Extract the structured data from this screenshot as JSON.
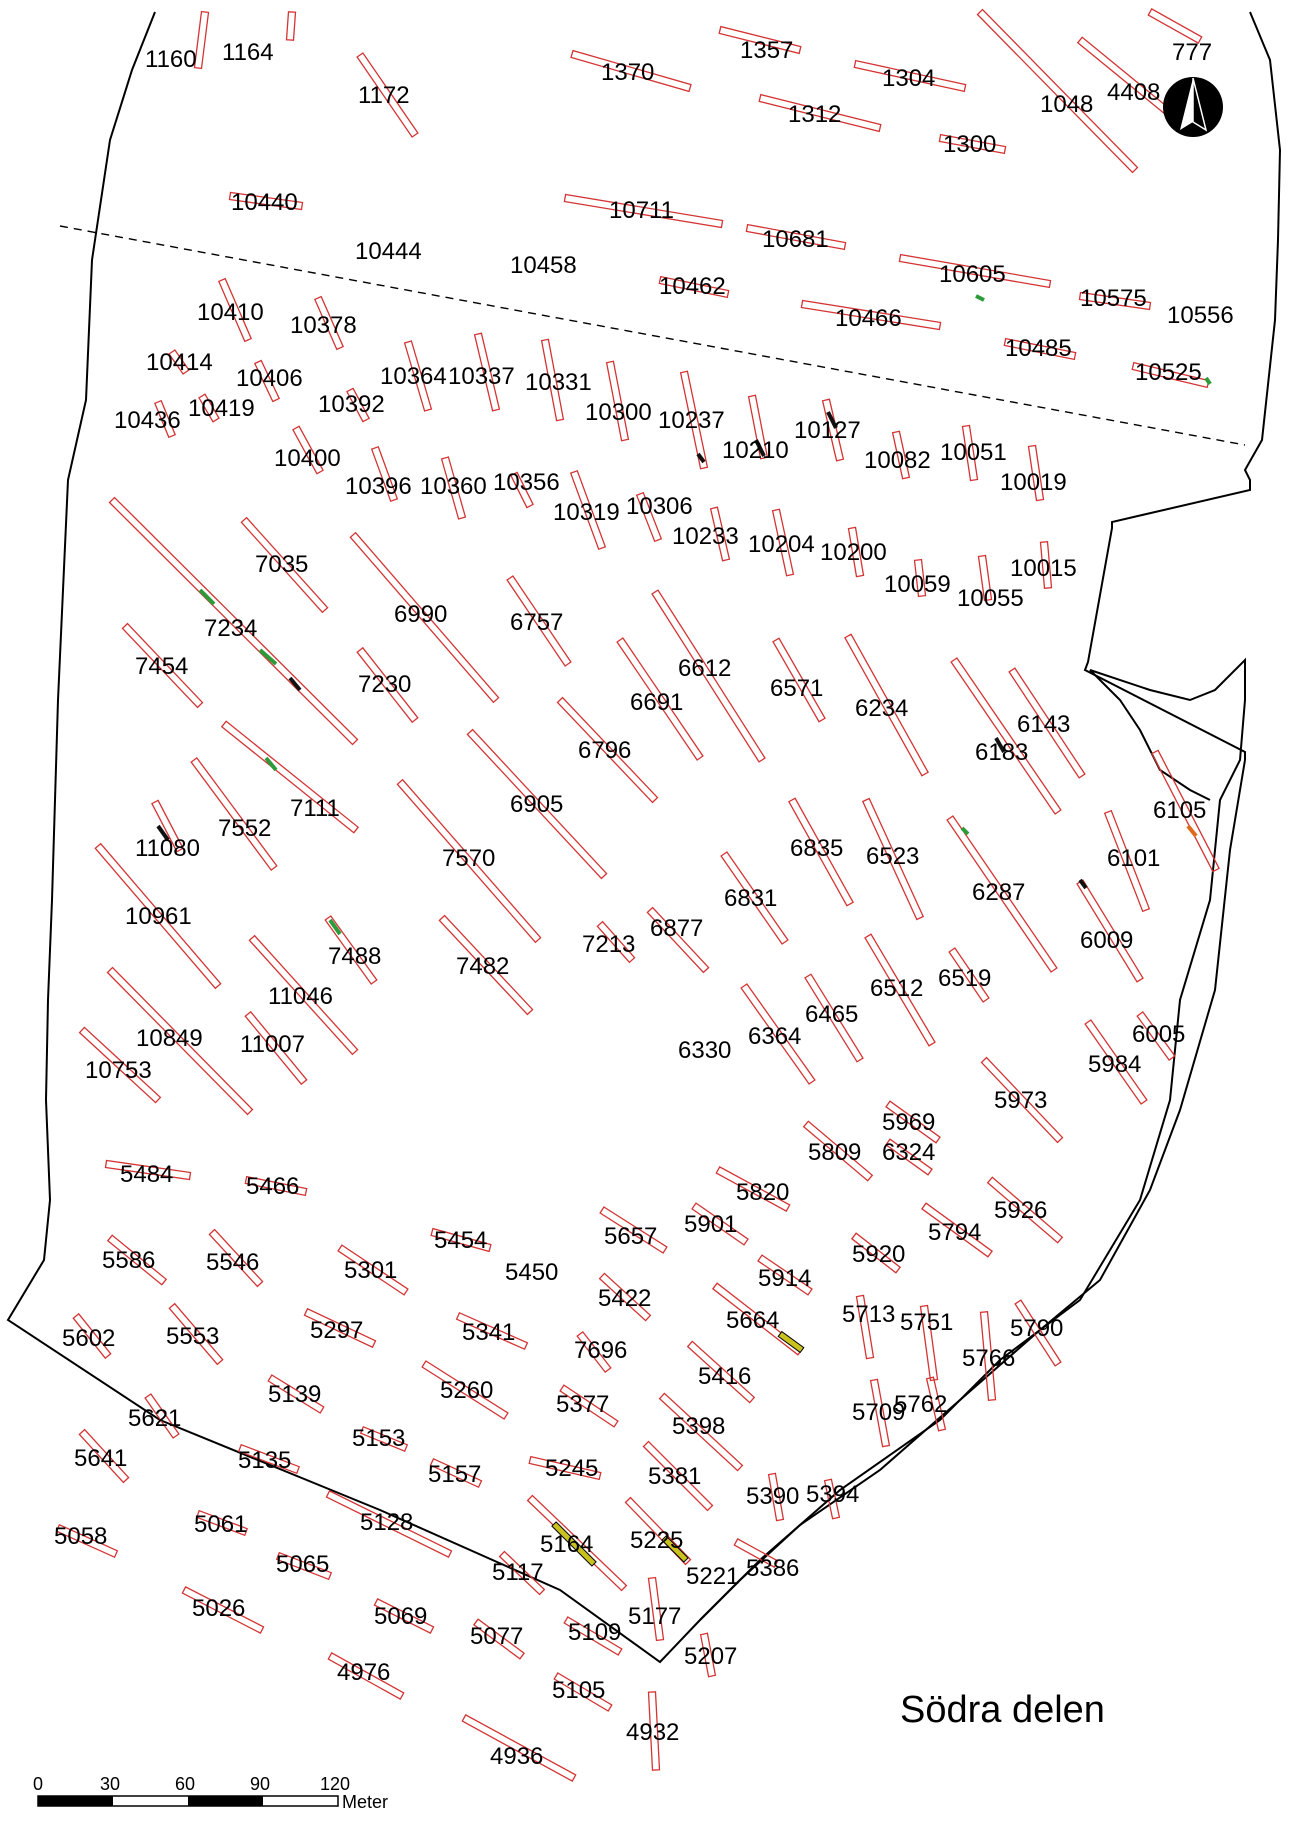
{
  "map_title": "Södra delen",
  "scale_bar": {
    "ticks": [
      "0",
      "30",
      "60",
      "90",
      "120"
    ],
    "unit": "Meter"
  },
  "north_arrow_icon": "north-arrow-icon",
  "colors": {
    "trench_outline": "#d43434",
    "boundary": "#000000",
    "feature_green": "#2e9b3a",
    "feature_yellow": "#c9c21e",
    "feature_black": "#111111"
  },
  "trenches": [
    {
      "id": "1160",
      "label": "1160"
    },
    {
      "id": "1164",
      "label": "1164"
    },
    {
      "id": "1172",
      "label": "1172"
    },
    {
      "id": "1370",
      "label": "1370"
    },
    {
      "id": "1357",
      "label": "1357"
    },
    {
      "id": "1304",
      "label": "1304"
    },
    {
      "id": "1312",
      "label": "1312"
    },
    {
      "id": "1300",
      "label": "1300"
    },
    {
      "id": "1048",
      "label": "1048"
    },
    {
      "id": "4408",
      "label": "4408"
    },
    {
      "id": "777",
      "label": "777"
    },
    {
      "id": "10440",
      "label": "10440"
    },
    {
      "id": "10711",
      "label": "10711"
    },
    {
      "id": "10681",
      "label": "10681"
    },
    {
      "id": "10444",
      "label": "10444"
    },
    {
      "id": "10458",
      "label": "10458"
    },
    {
      "id": "10462",
      "label": "10462"
    },
    {
      "id": "10605",
      "label": "10605"
    },
    {
      "id": "10575",
      "label": "10575"
    },
    {
      "id": "10556",
      "label": "10556"
    },
    {
      "id": "10466",
      "label": "10466"
    },
    {
      "id": "10485",
      "label": "10485"
    },
    {
      "id": "10525",
      "label": "10525"
    },
    {
      "id": "10410",
      "label": "10410"
    },
    {
      "id": "10378",
      "label": "10378"
    },
    {
      "id": "10414",
      "label": "10414"
    },
    {
      "id": "10406",
      "label": "10406"
    },
    {
      "id": "10364",
      "label": "10364"
    },
    {
      "id": "10337",
      "label": "10337"
    },
    {
      "id": "10331",
      "label": "10331"
    },
    {
      "id": "10436",
      "label": "10436"
    },
    {
      "id": "10419",
      "label": "10419"
    },
    {
      "id": "10392",
      "label": "10392"
    },
    {
      "id": "10300",
      "label": "10300"
    },
    {
      "id": "10237",
      "label": "10237"
    },
    {
      "id": "10210",
      "label": "10210"
    },
    {
      "id": "10127",
      "label": "10127"
    },
    {
      "id": "10082",
      "label": "10082"
    },
    {
      "id": "10051",
      "label": "10051"
    },
    {
      "id": "10019",
      "label": "10019"
    },
    {
      "id": "10400",
      "label": "10400"
    },
    {
      "id": "10396",
      "label": "10396"
    },
    {
      "id": "10360",
      "label": "10360"
    },
    {
      "id": "10356",
      "label": "10356"
    },
    {
      "id": "10319",
      "label": "10319"
    },
    {
      "id": "10306",
      "label": "10306"
    },
    {
      "id": "10233",
      "label": "10233"
    },
    {
      "id": "10204",
      "label": "10204"
    },
    {
      "id": "10200",
      "label": "10200"
    },
    {
      "id": "10059",
      "label": "10059"
    },
    {
      "id": "10055",
      "label": "10055"
    },
    {
      "id": "10015",
      "label": "10015"
    },
    {
      "id": "7035",
      "label": "7035"
    },
    {
      "id": "6990",
      "label": "6990"
    },
    {
      "id": "6757",
      "label": "6757"
    },
    {
      "id": "7234",
      "label": "7234"
    },
    {
      "id": "7454",
      "label": "7454"
    },
    {
      "id": "7230",
      "label": "7230"
    },
    {
      "id": "6612",
      "label": "6612"
    },
    {
      "id": "6691",
      "label": "6691"
    },
    {
      "id": "6571",
      "label": "6571"
    },
    {
      "id": "6234",
      "label": "6234"
    },
    {
      "id": "6143",
      "label": "6143"
    },
    {
      "id": "6183",
      "label": "6183"
    },
    {
      "id": "6796",
      "label": "6796"
    },
    {
      "id": "6905",
      "label": "6905"
    },
    {
      "id": "7111",
      "label": "7111"
    },
    {
      "id": "7552",
      "label": "7552"
    },
    {
      "id": "11080",
      "label": "11080"
    },
    {
      "id": "7570",
      "label": "7570"
    },
    {
      "id": "6835",
      "label": "6835"
    },
    {
      "id": "6523",
      "label": "6523"
    },
    {
      "id": "6105",
      "label": "6105"
    },
    {
      "id": "6101",
      "label": "6101"
    },
    {
      "id": "6287",
      "label": "6287"
    },
    {
      "id": "6831",
      "label": "6831"
    },
    {
      "id": "6009",
      "label": "6009"
    },
    {
      "id": "10961",
      "label": "10961"
    },
    {
      "id": "7488",
      "label": "7488"
    },
    {
      "id": "7482",
      "label": "7482"
    },
    {
      "id": "7213",
      "label": "7213"
    },
    {
      "id": "6877",
      "label": "6877"
    },
    {
      "id": "11046",
      "label": "11046"
    },
    {
      "id": "6512",
      "label": "6512"
    },
    {
      "id": "6519",
      "label": "6519"
    },
    {
      "id": "6465",
      "label": "6465"
    },
    {
      "id": "10849",
      "label": "10849"
    },
    {
      "id": "11007",
      "label": "11007"
    },
    {
      "id": "10753",
      "label": "10753"
    },
    {
      "id": "6330",
      "label": "6330"
    },
    {
      "id": "6364",
      "label": "6364"
    },
    {
      "id": "6005",
      "label": "6005"
    },
    {
      "id": "5984",
      "label": "5984"
    },
    {
      "id": "5973",
      "label": "5973"
    },
    {
      "id": "5969",
      "label": "5969"
    },
    {
      "id": "5809",
      "label": "5809"
    },
    {
      "id": "6324",
      "label": "6324"
    },
    {
      "id": "5484",
      "label": "5484"
    },
    {
      "id": "5466",
      "label": "5466"
    },
    {
      "id": "5820",
      "label": "5820"
    },
    {
      "id": "5926",
      "label": "5926"
    },
    {
      "id": "5901",
      "label": "5901"
    },
    {
      "id": "5657",
      "label": "5657"
    },
    {
      "id": "5794",
      "label": "5794"
    },
    {
      "id": "5454",
      "label": "5454"
    },
    {
      "id": "5586",
      "label": "5586"
    },
    {
      "id": "5546",
      "label": "5546"
    },
    {
      "id": "5301",
      "label": "5301"
    },
    {
      "id": "5450",
      "label": "5450"
    },
    {
      "id": "5920",
      "label": "5920"
    },
    {
      "id": "5914",
      "label": "5914"
    },
    {
      "id": "5422",
      "label": "5422"
    },
    {
      "id": "5664",
      "label": "5664"
    },
    {
      "id": "5713",
      "label": "5713"
    },
    {
      "id": "5751",
      "label": "5751"
    },
    {
      "id": "5790",
      "label": "5790"
    },
    {
      "id": "5602",
      "label": "5602"
    },
    {
      "id": "5553",
      "label": "5553"
    },
    {
      "id": "5297",
      "label": "5297"
    },
    {
      "id": "5341",
      "label": "5341"
    },
    {
      "id": "7696",
      "label": "7696"
    },
    {
      "id": "5766",
      "label": "5766"
    },
    {
      "id": "5416",
      "label": "5416"
    },
    {
      "id": "5139",
      "label": "5139"
    },
    {
      "id": "5260",
      "label": "5260"
    },
    {
      "id": "5621",
      "label": "5621"
    },
    {
      "id": "5377",
      "label": "5377"
    },
    {
      "id": "5709",
      "label": "5709"
    },
    {
      "id": "5762",
      "label": "5762"
    },
    {
      "id": "5398",
      "label": "5398"
    },
    {
      "id": "5153",
      "label": "5153"
    },
    {
      "id": "5641",
      "label": "5641"
    },
    {
      "id": "5135",
      "label": "5135"
    },
    {
      "id": "5157",
      "label": "5157"
    },
    {
      "id": "5245",
      "label": "5245"
    },
    {
      "id": "5381",
      "label": "5381"
    },
    {
      "id": "5390",
      "label": "5390"
    },
    {
      "id": "5394",
      "label": "5394"
    },
    {
      "id": "5058",
      "label": "5058"
    },
    {
      "id": "5061",
      "label": "5061"
    },
    {
      "id": "5128",
      "label": "5128"
    },
    {
      "id": "5164",
      "label": "5164"
    },
    {
      "id": "5225",
      "label": "5225"
    },
    {
      "id": "5065",
      "label": "5065"
    },
    {
      "id": "5117",
      "label": "5117"
    },
    {
      "id": "5221",
      "label": "5221"
    },
    {
      "id": "5386",
      "label": "5386"
    },
    {
      "id": "5026",
      "label": "5026"
    },
    {
      "id": "5069",
      "label": "5069"
    },
    {
      "id": "5177",
      "label": "5177"
    },
    {
      "id": "5077",
      "label": "5077"
    },
    {
      "id": "5109",
      "label": "5109"
    },
    {
      "id": "5207",
      "label": "5207"
    },
    {
      "id": "4976",
      "label": "4976"
    },
    {
      "id": "5105",
      "label": "5105"
    },
    {
      "id": "4932",
      "label": "4932"
    },
    {
      "id": "4936",
      "label": "4936"
    }
  ]
}
